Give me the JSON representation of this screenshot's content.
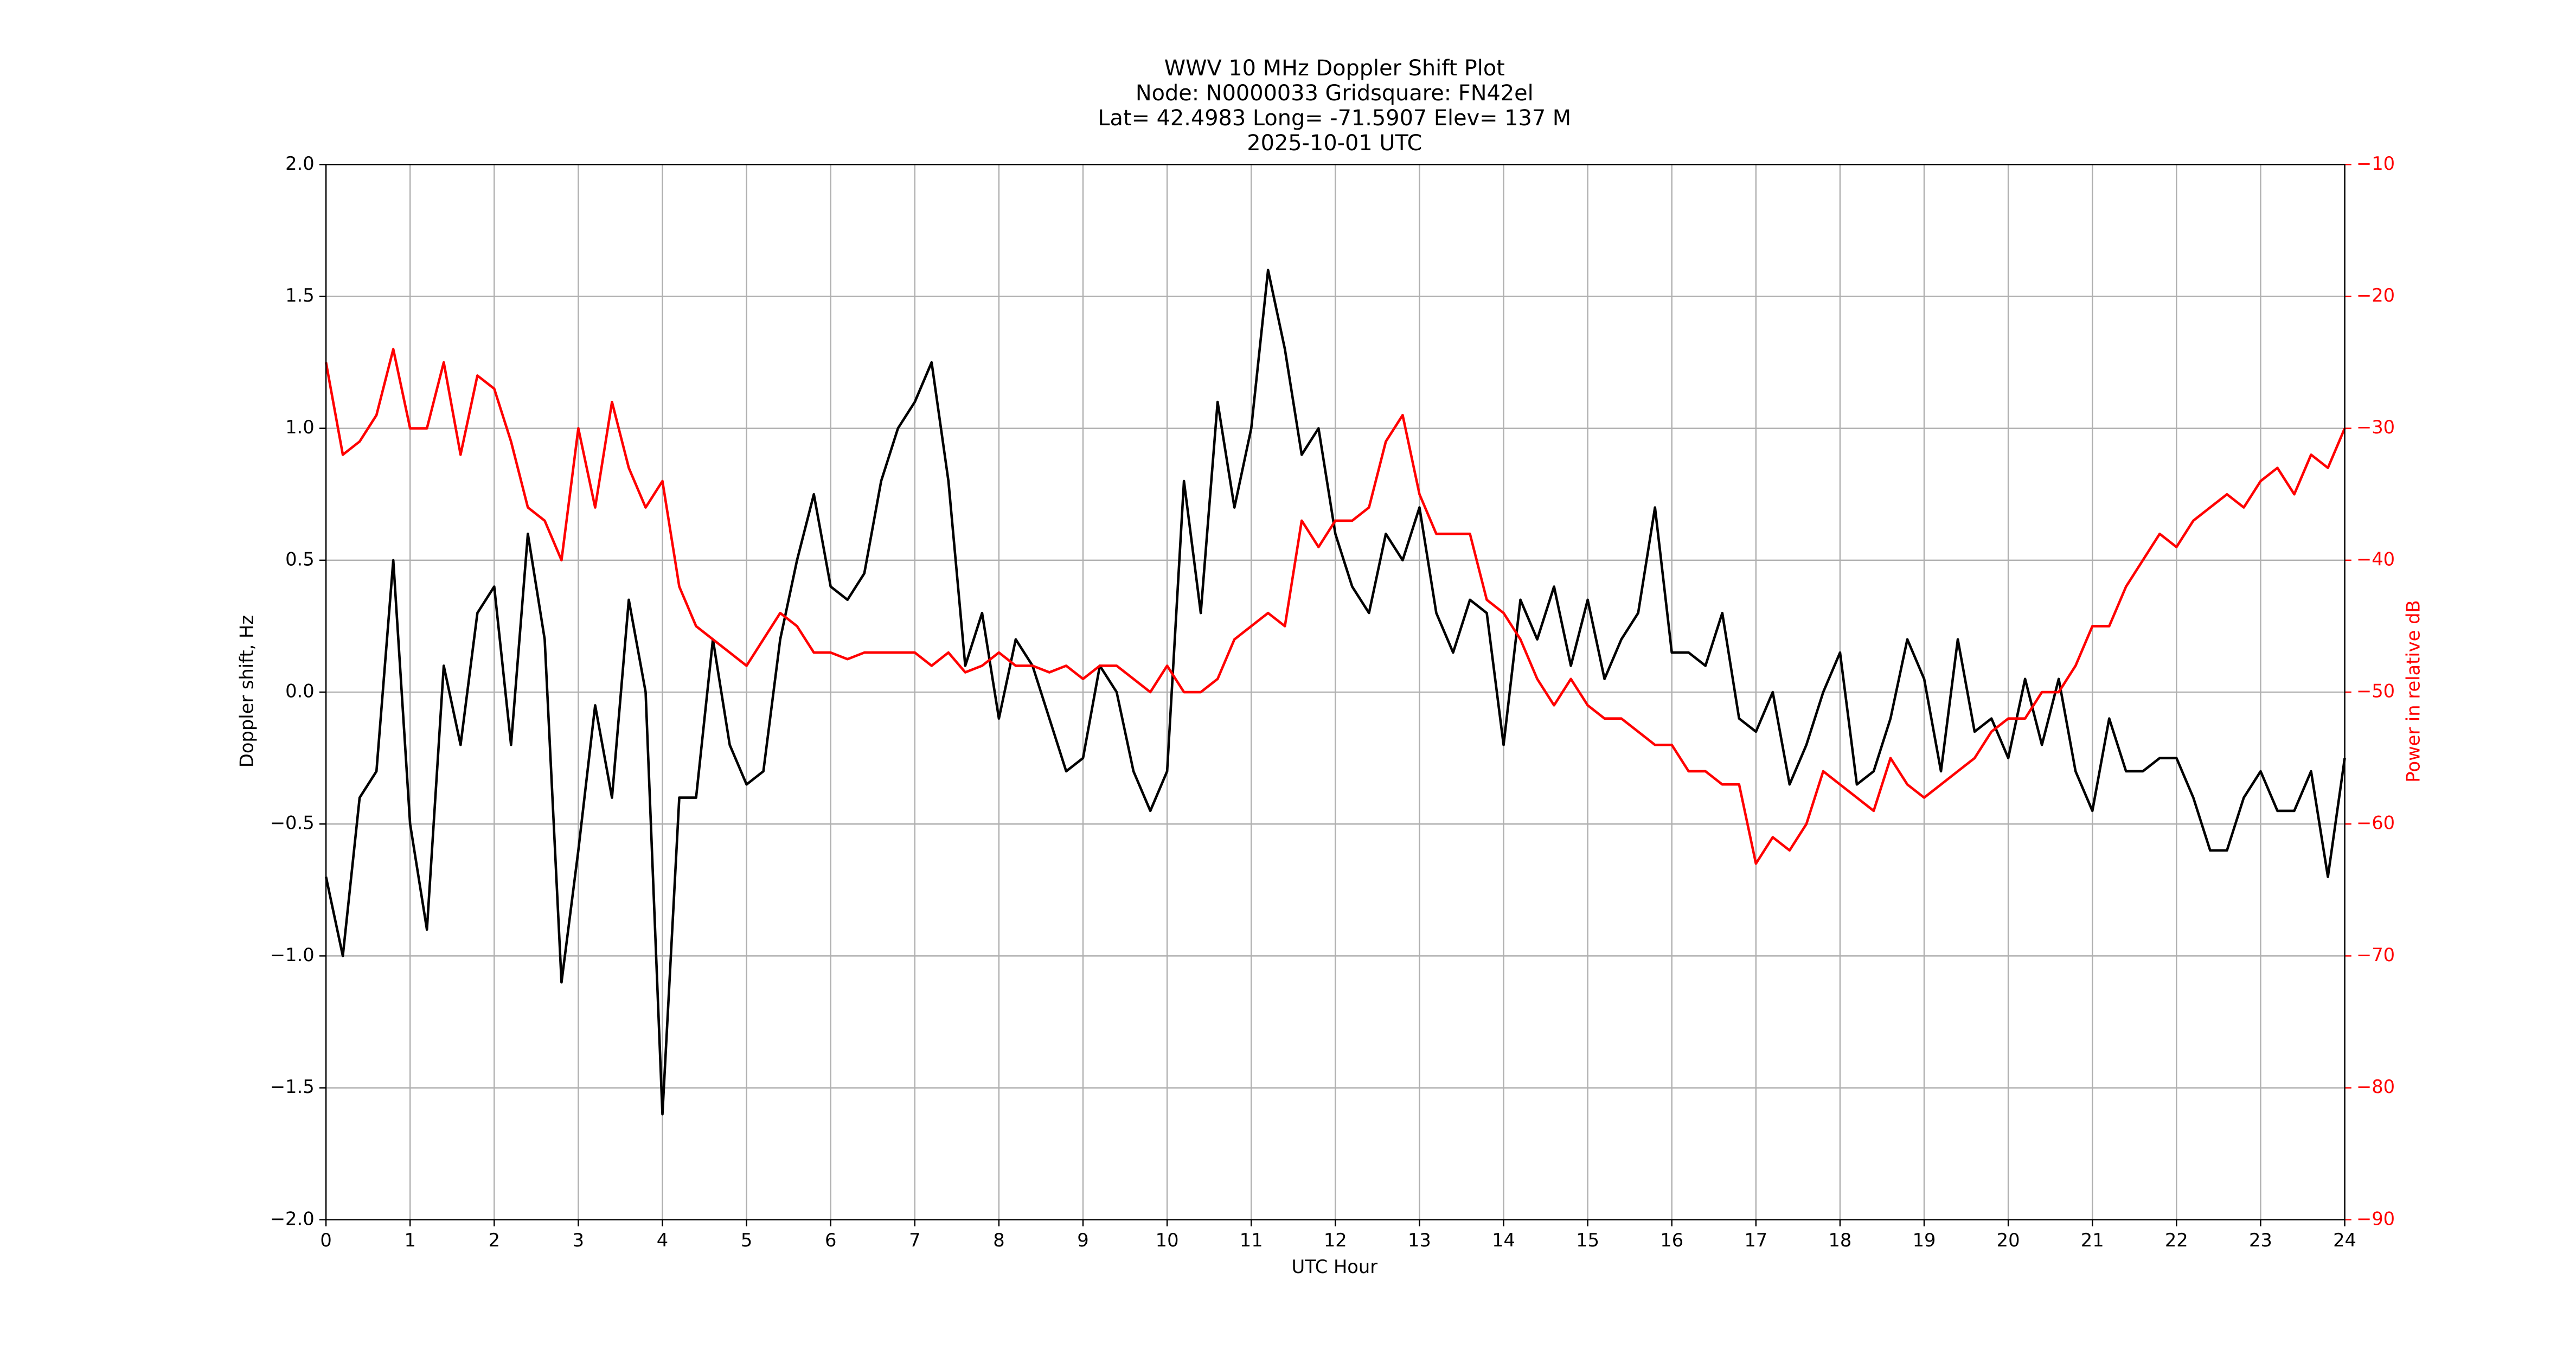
{
  "chart_data": {
    "type": "line",
    "title": "WWV 10 MHz Doppler Shift Plot",
    "subtitle": [
      "Node:  N0000033     Gridsquare:  FN42el",
      "Lat= 42.4983    Long= -71.5907    Elev= 137 M",
      "2025-10-01  UTC"
    ],
    "xlabel": "UTC Hour",
    "ylabel": "Doppler shift, Hz",
    "y2label": "Power in relative dB",
    "grid": true,
    "xlim": [
      0,
      24
    ],
    "xticks": [
      0,
      1,
      2,
      3,
      4,
      5,
      6,
      7,
      8,
      9,
      10,
      11,
      12,
      13,
      14,
      15,
      16,
      17,
      18,
      19,
      20,
      21,
      22,
      23,
      24
    ],
    "ylim": [
      -2,
      2
    ],
    "yticks": [
      {
        "value": -2,
        "label": "−2.0"
      },
      {
        "value": -1.5,
        "label": "−1.5"
      },
      {
        "value": -1,
        "label": "−1.0"
      },
      {
        "value": -0.5,
        "label": "−0.5"
      },
      {
        "value": 0,
        "label": "0.0"
      },
      0.5,
      {
        "value": 1,
        "label": "1.0"
      },
      1.5,
      {
        "value": 2,
        "label": "2.0"
      }
    ],
    "y2lim": [
      -90,
      -10
    ],
    "y2ticks": [
      {
        "value": -90,
        "label": "−90"
      },
      {
        "value": -80,
        "label": "−80"
      },
      {
        "value": -70,
        "label": "−70"
      },
      {
        "value": -60,
        "label": "−60"
      },
      {
        "value": -50,
        "label": "−50"
      },
      {
        "value": -40,
        "label": "−40"
      },
      {
        "value": -30,
        "label": "−30"
      },
      {
        "value": -20,
        "label": "−20"
      },
      {
        "value": -10,
        "label": "−10"
      }
    ],
    "y2color": "#ff0000",
    "x": [
      0,
      0.2,
      0.4,
      0.6,
      0.8,
      1,
      1.2,
      1.4,
      1.6,
      1.8,
      2,
      2.2,
      2.4,
      2.6,
      2.8,
      3,
      3.2,
      3.4,
      3.6,
      3.8,
      4,
      4.2,
      4.4,
      4.6,
      4.8,
      5,
      5.2,
      5.4,
      5.6,
      5.8,
      6,
      6.2,
      6.4,
      6.6,
      6.8,
      7,
      7.2,
      7.4,
      7.6,
      7.8,
      8,
      8.2,
      8.4,
      8.6,
      8.8,
      9,
      9.2,
      9.4,
      9.6,
      9.8,
      10,
      10.2,
      10.4,
      10.6,
      10.8,
      11,
      11.2,
      11.4,
      11.6,
      11.8,
      12,
      12.2,
      12.4,
      12.6,
      12.8,
      13,
      13.2,
      13.4,
      13.6,
      13.8,
      14,
      14.2,
      14.4,
      14.6,
      14.8,
      15,
      15.2,
      15.4,
      15.6,
      15.8,
      16,
      16.2,
      16.4,
      16.6,
      16.8,
      17,
      17.2,
      17.4,
      17.6,
      17.8,
      18,
      18.2,
      18.4,
      18.6,
      18.8,
      19,
      19.2,
      19.4,
      19.6,
      19.8,
      20,
      20.2,
      20.4,
      20.6,
      20.8,
      21,
      21.2,
      21.4,
      21.6,
      21.8,
      22,
      22.2,
      22.4,
      22.6,
      22.8,
      23,
      23.2,
      23.4,
      23.6,
      23.8,
      24
    ],
    "series": [
      {
        "color": "#000000",
        "values": [
          -0.7,
          -1.0,
          -0.4,
          -0.3,
          0.5,
          -0.5,
          -0.9,
          0.1,
          -0.2,
          0.3,
          0.4,
          -0.2,
          0.6,
          0.2,
          -1.1,
          -0.6,
          -0.05,
          -0.4,
          0.35,
          0.0,
          -1.6,
          -0.4,
          -0.4,
          0.2,
          -0.2,
          -0.35,
          -0.3,
          0.2,
          0.5,
          0.75,
          0.4,
          0.35,
          0.45,
          0.8,
          1.0,
          1.1,
          1.25,
          0.8,
          0.1,
          0.3,
          -0.1,
          0.2,
          0.1,
          -0.1,
          -0.3,
          -0.25,
          0.1,
          0.0,
          -0.3,
          -0.45,
          -0.3,
          0.8,
          0.3,
          1.1,
          0.7,
          1.0,
          1.6,
          1.3,
          0.9,
          1.0,
          0.6,
          0.4,
          0.3,
          0.6,
          0.5,
          0.7,
          0.3,
          0.15,
          0.35,
          0.3,
          -0.2,
          0.35,
          0.2,
          0.4,
          0.1,
          0.35,
          0.05,
          0.2,
          0.3,
          0.7,
          0.15,
          0.15,
          0.1,
          0.3,
          -0.1,
          -0.15,
          0.0,
          -0.35,
          -0.2,
          0.0,
          0.15,
          -0.35,
          -0.3,
          -0.1,
          0.2,
          0.05,
          -0.3,
          0.2,
          -0.15,
          -0.1,
          -0.25,
          0.05,
          -0.2,
          0.05,
          -0.3,
          -0.45,
          -0.1,
          -0.3,
          -0.3,
          -0.25,
          -0.25,
          -0.4,
          -0.6,
          -0.6,
          -0.4,
          -0.3,
          -0.45,
          -0.45,
          -0.3,
          -0.7,
          -0.25
        ]
      },
      {
        "color": "#ff0000",
        "axis": "y2",
        "values": [
          -25,
          -32,
          -31,
          -29,
          -24,
          -30,
          -30,
          -25,
          -32,
          -26,
          -27,
          -31,
          -36,
          -37,
          -40,
          -30,
          -36,
          -28,
          -33,
          -36,
          -34,
          -42,
          -45,
          -46,
          -47,
          -48,
          -46,
          -44,
          -45,
          -47,
          -47,
          -47.5,
          -47,
          -47,
          -47,
          -47,
          -48,
          -47,
          -48.5,
          -48,
          -47,
          -48,
          -48,
          -48.5,
          -48,
          -49,
          -48,
          -48,
          -49,
          -50,
          -48,
          -50,
          -50,
          -49,
          -46,
          -45,
          -44,
          -45,
          -37,
          -39,
          -37,
          -37,
          -36,
          -31,
          -29,
          -35,
          -38,
          -38,
          -38,
          -43,
          -44,
          -46,
          -49,
          -51,
          -49,
          -51,
          -52,
          -52,
          -53,
          -54,
          -54,
          -56,
          -56,
          -57,
          -57,
          -63,
          -61,
          -62,
          -60,
          -56,
          -57,
          -58,
          -59,
          -55,
          -57,
          -58,
          -57,
          -56,
          -55,
          -53,
          -52,
          -52,
          -50,
          -50,
          -48,
          -45,
          -45,
          -42,
          -40,
          -38,
          -39,
          -37,
          -36,
          -35,
          -36,
          -34,
          -33,
          -35,
          -32,
          -33,
          -30
        ]
      }
    ]
  }
}
